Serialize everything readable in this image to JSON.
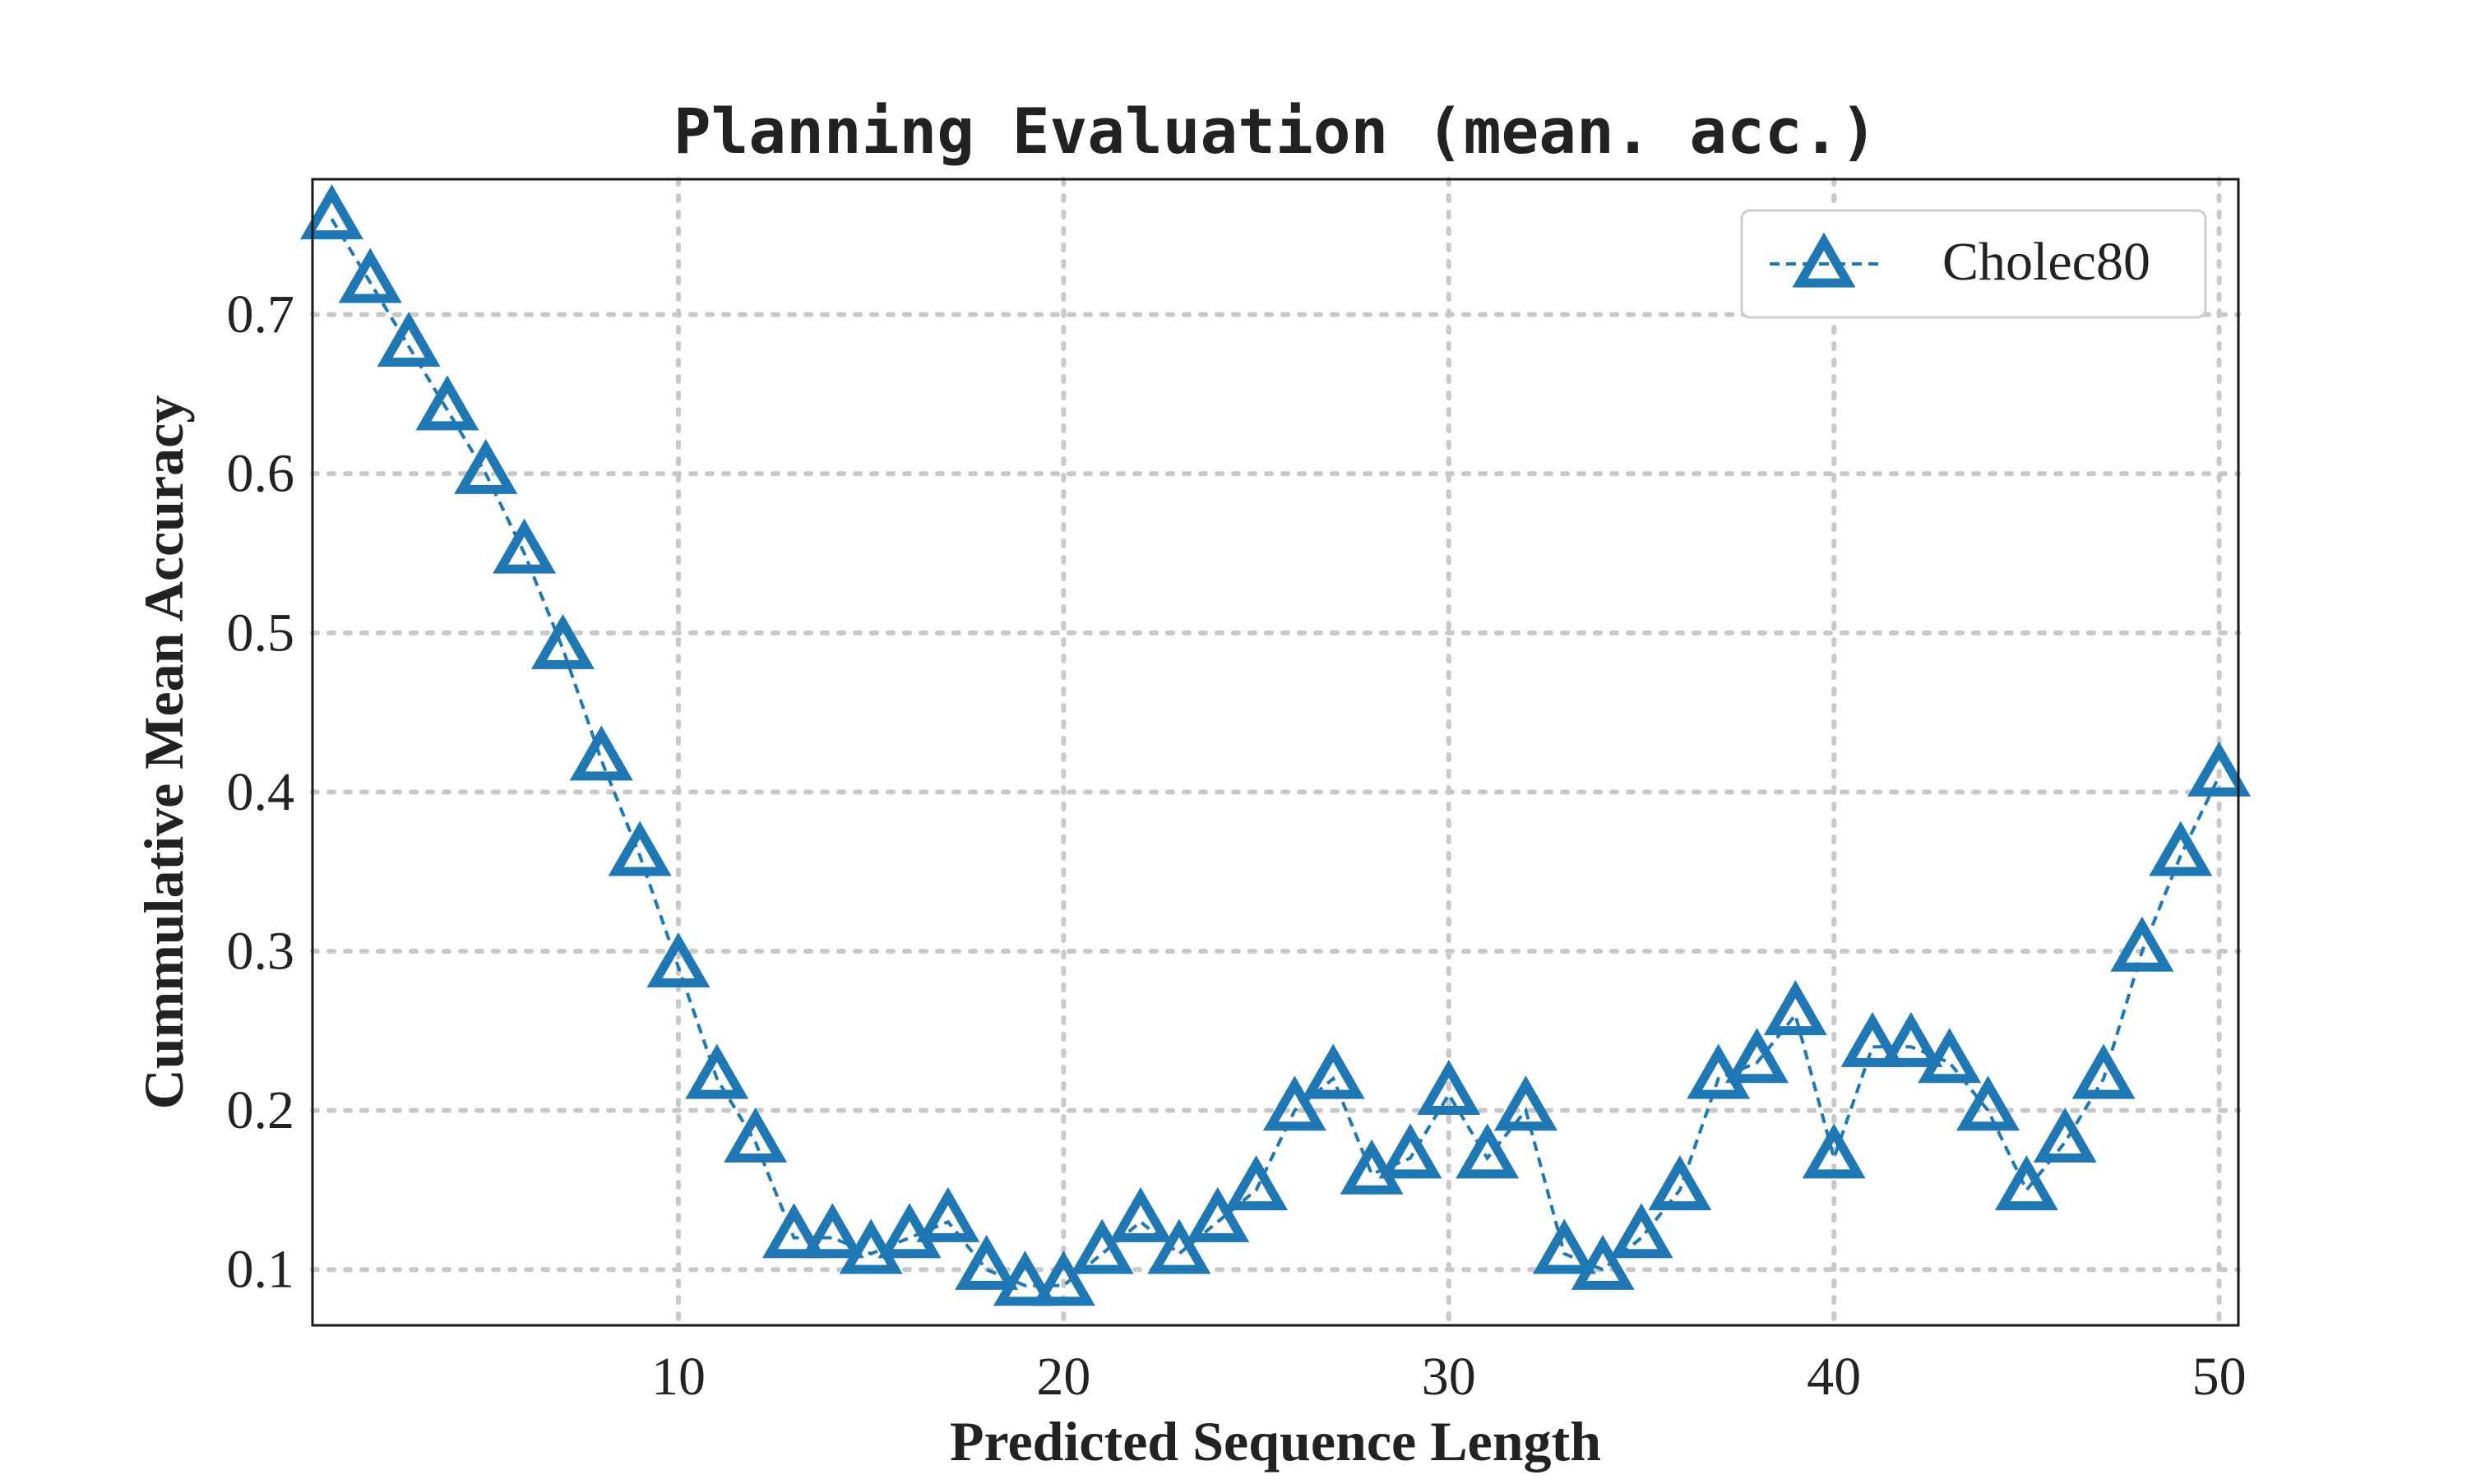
{
  "chart_data": {
    "type": "line",
    "title": "Planning Evaluation (mean. acc.)",
    "xlabel": "Predicted Sequence Length",
    "ylabel": "Cummulative Mean Accuracy",
    "xlim": [
      0.5,
      50.5
    ],
    "ylim": [
      0.065,
      0.785
    ],
    "xticks": [
      10,
      20,
      30,
      40,
      50
    ],
    "yticks": [
      0.1,
      0.2,
      0.3,
      0.4,
      0.5,
      0.6,
      0.7
    ],
    "xtick_labels": [
      "10",
      "20",
      "30",
      "40",
      "50"
    ],
    "ytick_labels": [
      "0.1",
      "0.2",
      "0.3",
      "0.4",
      "0.5",
      "0.6",
      "0.7"
    ],
    "grid": true,
    "grid_style": "dotted",
    "legend_position": "top-right",
    "series": [
      {
        "name": "Cholec80",
        "color": "#1f77b4",
        "line_style": "dashed",
        "marker": "triangle-up-open",
        "x": [
          1,
          2,
          3,
          4,
          5,
          6,
          7,
          8,
          9,
          10,
          11,
          12,
          13,
          14,
          15,
          16,
          17,
          18,
          19,
          20,
          21,
          22,
          23,
          24,
          25,
          26,
          27,
          28,
          29,
          30,
          31,
          32,
          33,
          34,
          35,
          36,
          37,
          38,
          39,
          40,
          41,
          42,
          43,
          44,
          45,
          46,
          47,
          48,
          49,
          50
        ],
        "values": [
          0.76,
          0.72,
          0.68,
          0.64,
          0.6,
          0.55,
          0.49,
          0.42,
          0.36,
          0.29,
          0.22,
          0.18,
          0.12,
          0.12,
          0.11,
          0.12,
          0.13,
          0.1,
          0.09,
          0.09,
          0.11,
          0.13,
          0.11,
          0.13,
          0.15,
          0.2,
          0.22,
          0.16,
          0.17,
          0.21,
          0.17,
          0.2,
          0.11,
          0.1,
          0.12,
          0.15,
          0.22,
          0.23,
          0.26,
          0.17,
          0.24,
          0.24,
          0.23,
          0.2,
          0.15,
          0.18,
          0.22,
          0.3,
          0.36,
          0.41
        ]
      }
    ]
  }
}
